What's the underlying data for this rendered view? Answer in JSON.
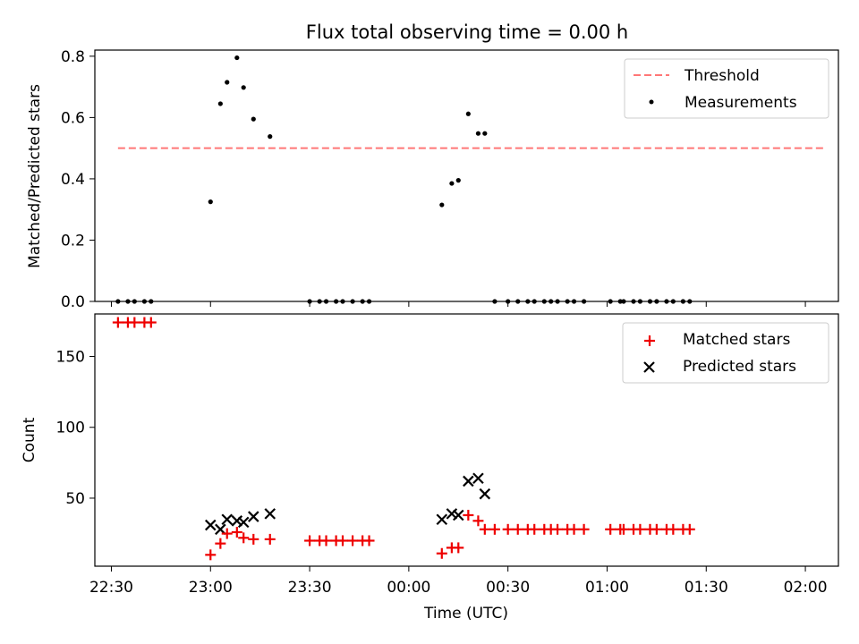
{
  "title": "Flux total observing time = 0.00 h",
  "colors": {
    "threshold": "#ff7777",
    "measurements": "#000000",
    "matched": "#ee0000",
    "predicted": "#000000"
  },
  "chart_data": [
    {
      "type": "scatter",
      "title": "Flux total observing time = 0.00 h",
      "ylabel": "Matched/Predicted stars",
      "xlabel": "",
      "x_unit": "time (UTC)",
      "xlim": [
        "22:25",
        "02:10"
      ],
      "ylim": [
        0,
        0.82
      ],
      "yticks": [
        0.0,
        0.2,
        0.4,
        0.6,
        0.8
      ],
      "ytick_labels": [
        "0.0",
        "0.2",
        "0.4",
        "0.6",
        "0.8"
      ],
      "xticks": [
        "22:30",
        "23:00",
        "23:30",
        "00:00",
        "00:30",
        "01:00",
        "01:30",
        "02:00"
      ],
      "show_xtick_labels": false,
      "grid": false,
      "legend_position": "upper right",
      "series": [
        {
          "name": "Threshold",
          "kind": "dashed-line",
          "color": "#ff7777",
          "x": [
            "22:32",
            "02:06"
          ],
          "y": [
            0.5,
            0.5
          ]
        },
        {
          "name": "Measurements",
          "kind": "dot",
          "color": "#000000",
          "x": [
            "22:32",
            "22:35",
            "22:37",
            "22:40",
            "22:42",
            "23:00",
            "23:03",
            "23:05",
            "23:08",
            "23:10",
            "23:13",
            "23:18",
            "23:30",
            "23:33",
            "23:35",
            "23:38",
            "23:40",
            "23:43",
            "23:46",
            "23:48",
            "00:10",
            "00:13",
            "00:15",
            "00:18",
            "00:21",
            "00:23",
            "00:26",
            "00:30",
            "00:33",
            "00:36",
            "00:38",
            "00:41",
            "00:43",
            "00:45",
            "00:48",
            "00:50",
            "00:53",
            "01:01",
            "01:04",
            "01:05",
            "01:08",
            "01:10",
            "01:13",
            "01:15",
            "01:18",
            "01:20",
            "01:23",
            "01:25"
          ],
          "y": [
            0,
            0,
            0,
            0,
            0,
            0.325,
            0.645,
            0.715,
            0.795,
            0.698,
            0.595,
            0.538,
            0,
            0,
            0,
            0,
            0,
            0,
            0,
            0,
            0.315,
            0.385,
            0.395,
            0.612,
            0.548,
            0.548,
            0,
            0,
            0,
            0,
            0,
            0,
            0,
            0,
            0,
            0,
            0,
            0,
            0,
            0,
            0,
            0,
            0,
            0,
            0,
            0,
            0,
            0
          ]
        }
      ]
    },
    {
      "type": "scatter",
      "title": "",
      "ylabel": "Count",
      "xlabel": "Time (UTC)",
      "x_unit": "time (UTC)",
      "xlim": [
        "22:25",
        "02:10"
      ],
      "ylim": [
        2,
        180
      ],
      "yticks": [
        50,
        100,
        150
      ],
      "ytick_labels": [
        "50",
        "100",
        "150"
      ],
      "xticks": [
        "22:30",
        "23:00",
        "23:30",
        "00:00",
        "00:30",
        "01:00",
        "01:30",
        "02:00"
      ],
      "xtick_labels": [
        "22:30",
        "23:00",
        "23:30",
        "00:00",
        "00:30",
        "01:00",
        "01:30",
        "02:00"
      ],
      "grid": false,
      "legend_position": "upper right",
      "series": [
        {
          "name": "Matched stars",
          "kind": "plus",
          "color": "#ee0000",
          "x": [
            "22:32",
            "22:35",
            "22:37",
            "22:40",
            "22:42",
            "23:00",
            "23:03",
            "23:05",
            "23:08",
            "23:10",
            "23:13",
            "23:18",
            "23:30",
            "23:33",
            "23:35",
            "23:38",
            "23:40",
            "23:43",
            "23:46",
            "23:48",
            "00:10",
            "00:13",
            "00:15",
            "00:18",
            "00:21",
            "00:23",
            "00:26",
            "00:30",
            "00:33",
            "00:36",
            "00:38",
            "00:41",
            "00:43",
            "00:45",
            "00:48",
            "00:50",
            "00:53",
            "01:01",
            "01:04",
            "01:05",
            "01:08",
            "01:10",
            "01:13",
            "01:15",
            "01:18",
            "01:20",
            "01:23",
            "01:25"
          ],
          "y": [
            174,
            174,
            174,
            174,
            174,
            10,
            18,
            25,
            26,
            22,
            21,
            21,
            20,
            20,
            20,
            20,
            20,
            20,
            20,
            20,
            11,
            15,
            15,
            38,
            34,
            28,
            28,
            28,
            28,
            28,
            28,
            28,
            28,
            28,
            28,
            28,
            28,
            28,
            28,
            28,
            28,
            28,
            28,
            28,
            28,
            28,
            28,
            28
          ]
        },
        {
          "name": "Predicted stars",
          "kind": "cross",
          "color": "#000000",
          "x": [
            "23:00",
            "23:03",
            "23:05",
            "23:08",
            "23:10",
            "23:13",
            "23:18",
            "00:10",
            "00:13",
            "00:15",
            "00:18",
            "00:21",
            "00:23"
          ],
          "y": [
            31,
            28,
            35,
            34,
            33,
            37,
            39,
            35,
            39,
            38,
            62,
            64,
            53
          ]
        }
      ]
    }
  ]
}
